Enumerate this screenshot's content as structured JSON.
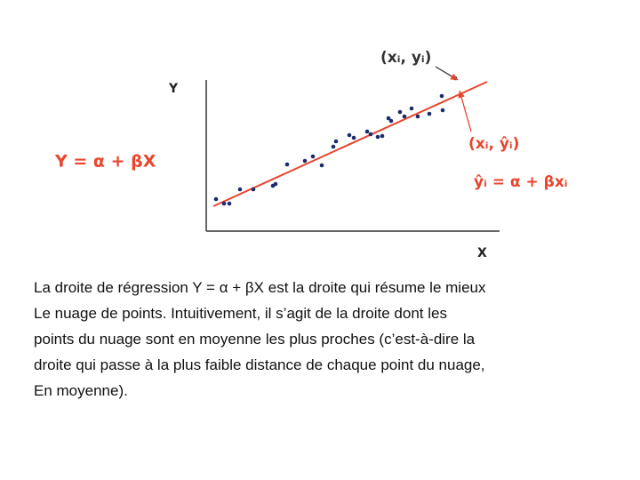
{
  "diagram": {
    "y_axis_label": "Y",
    "x_axis_label": "X",
    "model_label": "Y = α + βX",
    "point_label": "(xᵢ, yᵢ)",
    "fitted_point_label": "(xᵢ, ŷᵢ)",
    "fitted_equation": "ŷᵢ = α + βxᵢ"
  },
  "caption": {
    "lines": [
      "La droite de régression Y = α + βX est la droite qui résume le mieux",
      "Le nuage de points. Intuitivement, il s’agit de la droite dont les",
      "points du nuage sont en moyenne les plus proches (c’est-à-dire la",
      "droite qui passe à la plus faible distance de chaque point du nuage,",
      "En moyenne)."
    ]
  }
}
